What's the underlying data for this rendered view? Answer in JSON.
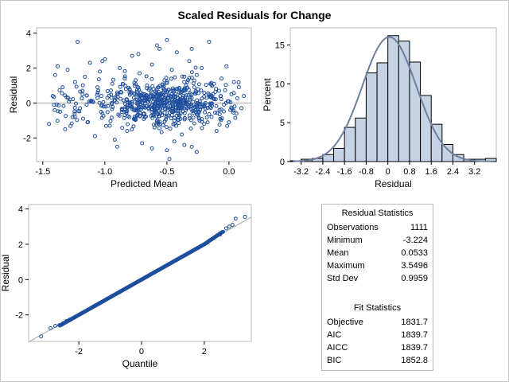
{
  "title": "Scaled Residuals for Change",
  "colors": {
    "marker": "#1f4e9e",
    "bar_fill": "#c6d3e4",
    "bar_edge": "#000000",
    "curve": "#6f7f9e",
    "ref_line": "#a8a8a8"
  },
  "chart_data": [
    {
      "type": "scatter",
      "xlabel": "Predicted Mean",
      "ylabel": "Residual",
      "xlim": [
        -1.55,
        0.18
      ],
      "ylim": [
        -3.35,
        4.3
      ],
      "xticks": [
        "-1.5",
        "-1.0",
        "-0.5",
        "0.0"
      ],
      "yticks": [
        "-2",
        "0",
        "2",
        "4"
      ],
      "reference_line_y": 0,
      "n_points": 1111,
      "points": [
        [
          -1.45,
          -1.2
        ],
        [
          -1.42,
          0.4
        ],
        [
          -1.4,
          1.6
        ],
        [
          -1.38,
          2.1
        ],
        [
          -1.36,
          -0.5
        ],
        [
          -1.34,
          0.9
        ],
        [
          -1.32,
          -1.5
        ],
        [
          -1.3,
          1.9
        ],
        [
          -1.28,
          0.2
        ],
        [
          -1.26,
          -0.8
        ],
        [
          -1.24,
          1.2
        ],
        [
          -1.22,
          3.5
        ],
        [
          -1.2,
          -0.3
        ],
        [
          -1.18,
          0.7
        ],
        [
          -1.16,
          1.5
        ],
        [
          -1.14,
          -1.1
        ],
        [
          -1.12,
          2.3
        ],
        [
          -1.1,
          0.1
        ],
        [
          -1.08,
          -1.9
        ],
        [
          -1.06,
          0.9
        ],
        [
          -1.04,
          1.8
        ],
        [
          -1.02,
          -0.6
        ],
        [
          -1.0,
          2.5
        ],
        [
          -0.98,
          0.3
        ],
        [
          -0.96,
          -1.3
        ],
        [
          -0.94,
          1.1
        ],
        [
          -0.92,
          -2.1
        ],
        [
          -0.9,
          0.6
        ],
        [
          -0.88,
          2.0
        ],
        [
          -0.86,
          -0.4
        ],
        [
          -0.84,
          1.4
        ],
        [
          -0.82,
          -1.6
        ],
        [
          -0.8,
          0.8
        ],
        [
          -0.78,
          2.7
        ],
        [
          -0.76,
          -0.9
        ],
        [
          -0.74,
          0.2
        ],
        [
          -0.72,
          1.7
        ],
        [
          -0.7,
          -2.3
        ],
        [
          -0.68,
          0.5
        ],
        [
          -0.66,
          1.0
        ],
        [
          -0.64,
          -0.2
        ],
        [
          -0.62,
          2.2
        ],
        [
          -0.6,
          -1.4
        ],
        [
          -0.58,
          0.4
        ],
        [
          -0.56,
          3.1
        ],
        [
          -0.54,
          -0.7
        ],
        [
          -0.52,
          1.3
        ],
        [
          -0.5,
          -2.7
        ],
        [
          -0.48,
          0.0
        ],
        [
          -0.46,
          1.9
        ],
        [
          -0.44,
          -1.0
        ],
        [
          -0.42,
          2.9
        ],
        [
          -0.4,
          0.6
        ],
        [
          -0.38,
          -1.8
        ],
        [
          -0.36,
          1.2
        ],
        [
          -0.34,
          -0.3
        ],
        [
          -0.32,
          2.4
        ],
        [
          -0.3,
          -2.5
        ],
        [
          -0.28,
          0.9
        ],
        [
          -0.26,
          1.6
        ],
        [
          -0.24,
          -0.5
        ],
        [
          -0.22,
          2.0
        ],
        [
          -0.2,
          -1.2
        ],
        [
          -0.18,
          0.3
        ],
        [
          -0.16,
          3.5
        ],
        [
          -0.14,
          -0.8
        ],
        [
          -0.12,
          1.1
        ],
        [
          -0.1,
          -1.6
        ],
        [
          -0.08,
          0.7
        ],
        [
          -0.06,
          1.4
        ],
        [
          -0.04,
          -0.1
        ],
        [
          -0.02,
          2.1
        ],
        [
          0.0,
          -1.1
        ],
        [
          0.02,
          0.5
        ],
        [
          0.04,
          1.2
        ],
        [
          0.06,
          -0.6
        ],
        [
          0.08,
          0.9
        ],
        [
          0.1,
          -0.3
        ],
        [
          0.12,
          0.4
        ],
        [
          -0.48,
          -3.2
        ],
        [
          -0.5,
          3.6
        ],
        [
          -0.58,
          3.3
        ],
        [
          -0.26,
          -2.8
        ],
        [
          -0.62,
          -2.6
        ],
        [
          -0.9,
          -2.5
        ],
        [
          -0.44,
          -2.2
        ],
        [
          -1.02,
          2.4
        ],
        [
          -0.73,
          2.8
        ],
        [
          -0.3,
          3.1
        ],
        [
          -0.36,
          -2.4
        ]
      ]
    },
    {
      "type": "bar",
      "xlabel": "Residual",
      "ylabel": "Percent",
      "xlim": [
        -3.6,
        4.0
      ],
      "ylim": [
        0,
        17.2
      ],
      "xticks": [
        "-3.2",
        "-2.4",
        "-1.6",
        "-0.8",
        "0",
        "0.8",
        "1.6",
        "2.4",
        "3.2"
      ],
      "yticks": [
        "0",
        "5",
        "10",
        "15"
      ],
      "bin_width": 0.4,
      "bin_starts": [
        -3.6,
        -3.2,
        -2.8,
        -2.4,
        -2.0,
        -1.6,
        -1.2,
        -0.8,
        -0.4,
        0.0,
        0.4,
        0.8,
        1.2,
        1.6,
        2.0,
        2.4,
        2.8,
        3.2,
        3.6
      ],
      "values": [
        0.1,
        0.3,
        0.4,
        0.9,
        1.7,
        4.4,
        5.6,
        11.4,
        12.7,
        16.2,
        15.5,
        12.8,
        8.5,
        4.8,
        2.2,
        0.9,
        0.3,
        0.3,
        0.4
      ],
      "normal_curve": {
        "mean": 0.0533,
        "sd": 0.9959
      }
    },
    {
      "type": "scatter",
      "xlabel": "Quantile",
      "ylabel": "Residual",
      "xlim": [
        -3.6,
        3.5
      ],
      "ylim": [
        -3.5,
        4.25
      ],
      "xticks": [
        "-2",
        "0",
        "2"
      ],
      "yticks": [
        "-2",
        "0",
        "2",
        "4"
      ],
      "reference_line": {
        "intercept": 0.0533,
        "slope": 0.9959
      },
      "points": [
        [
          -3.2,
          -3.22
        ],
        [
          -2.9,
          -2.75
        ],
        [
          -2.75,
          -2.62
        ],
        [
          -2.62,
          -2.58
        ],
        [
          -2.5,
          -2.47
        ],
        [
          -2.4,
          -2.35
        ],
        [
          -2.3,
          -2.27
        ],
        [
          -2.2,
          -2.2
        ],
        [
          -2.1,
          -2.1
        ],
        [
          -2.0,
          -2.0
        ],
        [
          -1.9,
          -1.9
        ],
        [
          -1.8,
          -1.8
        ],
        [
          -1.7,
          -1.7
        ],
        [
          -1.6,
          -1.6
        ],
        [
          -1.5,
          -1.5
        ],
        [
          -1.4,
          -1.4
        ],
        [
          -1.3,
          -1.3
        ],
        [
          -1.2,
          -1.2
        ],
        [
          -1.1,
          -1.1
        ],
        [
          -1.0,
          -1.0
        ],
        [
          -0.9,
          -0.9
        ],
        [
          -0.8,
          -0.8
        ],
        [
          -0.7,
          -0.7
        ],
        [
          -0.6,
          -0.6
        ],
        [
          -0.5,
          -0.5
        ],
        [
          -0.4,
          -0.4
        ],
        [
          -0.3,
          -0.3
        ],
        [
          -0.2,
          -0.2
        ],
        [
          -0.1,
          -0.1
        ],
        [
          0.0,
          0.0
        ],
        [
          0.1,
          0.1
        ],
        [
          0.2,
          0.2
        ],
        [
          0.3,
          0.3
        ],
        [
          0.4,
          0.4
        ],
        [
          0.5,
          0.5
        ],
        [
          0.6,
          0.6
        ],
        [
          0.7,
          0.7
        ],
        [
          0.8,
          0.8
        ],
        [
          0.9,
          0.9
        ],
        [
          1.0,
          1.0
        ],
        [
          1.1,
          1.1
        ],
        [
          1.2,
          1.2
        ],
        [
          1.3,
          1.3
        ],
        [
          1.4,
          1.4
        ],
        [
          1.5,
          1.5
        ],
        [
          1.6,
          1.6
        ],
        [
          1.7,
          1.7
        ],
        [
          1.8,
          1.8
        ],
        [
          1.9,
          1.9
        ],
        [
          2.0,
          2.0
        ],
        [
          2.1,
          2.1
        ],
        [
          2.2,
          2.25
        ],
        [
          2.3,
          2.35
        ],
        [
          2.4,
          2.48
        ],
        [
          2.5,
          2.55
        ],
        [
          2.6,
          2.7
        ],
        [
          2.7,
          2.9
        ],
        [
          2.8,
          3.0
        ],
        [
          2.9,
          3.1
        ],
        [
          3.0,
          3.45
        ],
        [
          3.3,
          3.55
        ]
      ]
    }
  ],
  "residual_statistics": {
    "heading": "Residual Statistics",
    "rows": [
      {
        "label": "Observations",
        "value": "1111"
      },
      {
        "label": "Minimum",
        "value": "-3.224"
      },
      {
        "label": "Mean",
        "value": "0.0533"
      },
      {
        "label": "Maximum",
        "value": "3.5496"
      },
      {
        "label": "Std Dev",
        "value": "0.9959"
      }
    ]
  },
  "fit_statistics": {
    "heading": "Fit Statistics",
    "rows": [
      {
        "label": "Objective",
        "value": "1831.7"
      },
      {
        "label": "AIC",
        "value": "1839.7"
      },
      {
        "label": "AICC",
        "value": "1839.7"
      },
      {
        "label": "BIC",
        "value": "1852.8"
      }
    ]
  }
}
